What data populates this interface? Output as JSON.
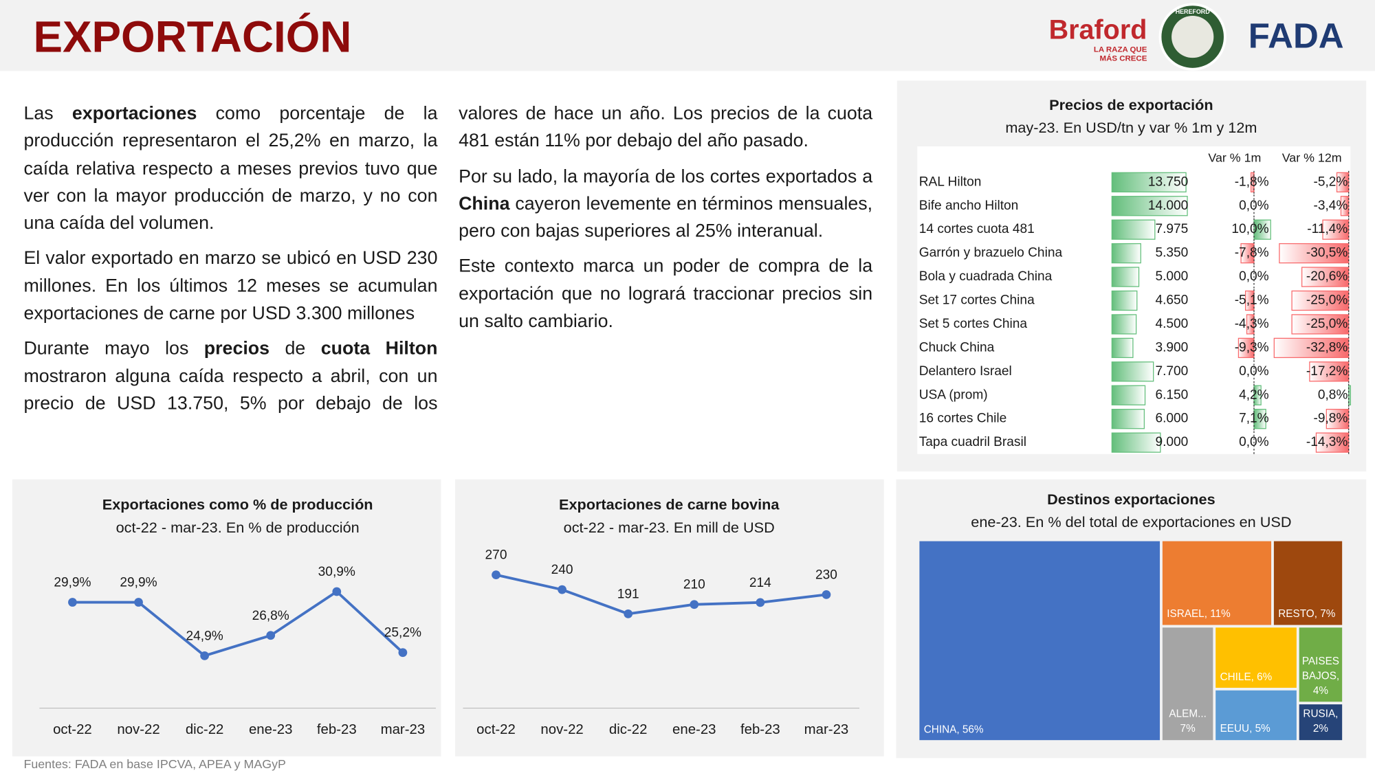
{
  "header": {
    "title": "EXPORTACIÓN",
    "logos": {
      "braford": "Braford",
      "braford_tagline_1": "LA RAZA QUE",
      "braford_tagline_2": "MÁS CRECE",
      "hereford": "HEREFORD",
      "fada": "FADA"
    }
  },
  "paragraphs": [
    [
      {
        "text": "Las "
      },
      {
        "text": "exportaciones",
        "bold": true
      },
      {
        "text": " como porcentaje de la producción representaron el 25,2% en marzo, la caída relativa respecto a meses previos tuvo que ver con la mayor producción de marzo, y no con una caída del volumen."
      }
    ],
    [
      {
        "text": "El valor exportado en marzo se ubicó en USD 230 millones. En los últimos 12 meses se acumulan exportaciones de carne por USD 3.300 millones"
      }
    ],
    [
      {
        "text": "Durante mayo los "
      },
      {
        "text": "precios",
        "bold": true
      },
      {
        "text": " de "
      },
      {
        "text": "cuota Hilton",
        "bold": true
      },
      {
        "text": " mostraron alguna caída respecto a abril, con un precio de USD 13.750, 5% por debajo de los valores de hace un año. Los precios de la cuota 481 están 11% por debajo del año pasado."
      }
    ],
    [
      {
        "text": "Por su lado, la mayoría de los cortes exportados a "
      },
      {
        "text": "China",
        "bold": true
      },
      {
        "text": " cayeron levemente en términos mensuales, pero con bajas superiores al 25% interanual."
      }
    ],
    [
      {
        "text": "Este contexto marca un poder de compra de la exportación que no logrará traccionar precios sin un salto cambiario."
      }
    ]
  ],
  "table": {
    "title": "Precios de exportación",
    "subtitle": "may-23. En USD/tn y var % 1m y 12m",
    "headers": [
      "Var % 1m",
      "Var % 12m"
    ],
    "names": [
      "RAL Hilton",
      "Bife ancho Hilton",
      "14 cortes cuota 481",
      "Garrón y brazuelo China",
      "Bola y cuadrada China",
      "Set 17 cortes China",
      "Set 5 cortes China",
      "Chuck China",
      "Delantero Israel",
      "USA (prom)",
      "16 cortes Chile",
      "Tapa cuadril Brasil"
    ],
    "price": {
      "values": [
        13750,
        14000,
        7975,
        5350,
        5000,
        4650,
        4500,
        3900,
        7700,
        6150,
        6000,
        9000
      ],
      "value_labels": [
        "13.750",
        "14.000",
        "7.975",
        "5.350",
        "5.000",
        "4.650",
        "4.500",
        "3.900",
        "7.700",
        "6.150",
        "6.000",
        "9.000"
      ]
    },
    "var_1m": {
      "values": [
        -1.8,
        0,
        10,
        -7.8,
        0,
        -5.1,
        -4.3,
        -9.3,
        0,
        4.2,
        7.1,
        0
      ],
      "value_labels": [
        "-1,8%",
        "0,0%",
        "10,0%",
        "-7,8%",
        "0,0%",
        "-5,1%",
        "-4,3%",
        "-9,3%",
        "0,0%",
        "4,2%",
        "7,1%",
        "0,0%"
      ]
    },
    "var_12m": {
      "values": [
        -5.2,
        -3.4,
        -11.4,
        -30.5,
        -20.6,
        -25.0,
        -25.0,
        -32.8,
        -17.2,
        0.8,
        -9.8,
        -14.3
      ],
      "value_labels": [
        "-5,2%",
        "-3,4%",
        "-11,4%",
        "-30,5%",
        "-20,6%",
        "-25,0%",
        "-25,0%",
        "-32,8%",
        "-17,2%",
        "0,8%",
        "-9,8%",
        "-14,3%"
      ]
    }
  },
  "chart_data": [
    {
      "type": "line",
      "title": "Exportaciones como % de producción",
      "subtitle": "oct-22 - mar-23. En % de producción",
      "categories": [
        "oct-22",
        "nov-22",
        "dic-22",
        "ene-23",
        "feb-23",
        "mar-23"
      ],
      "values": [
        29.9,
        29.9,
        24.9,
        26.8,
        30.9,
        25.2
      ],
      "value_labels": [
        "29,9%",
        "29,9%",
        "24,9%",
        "26,8%",
        "30,9%",
        "25,2%"
      ],
      "ylim": [
        20,
        32
      ],
      "color": "#4472c4"
    },
    {
      "type": "line",
      "title": "Exportaciones de carne bovina",
      "subtitle": "oct-22 - mar-23. En mill de USD",
      "categories": [
        "oct-22",
        "nov-22",
        "dic-22",
        "ene-23",
        "feb-23",
        "mar-23"
      ],
      "values": [
        270,
        240,
        191,
        210,
        214,
        230
      ],
      "ylim": [
        0,
        300
      ],
      "color": "#4472c4"
    },
    {
      "type": "treemap",
      "title": "Destinos exportaciones",
      "subtitle": "ene-23. En % del total de exportaciones en USD",
      "values": [
        56,
        11,
        7,
        7,
        6,
        5,
        4,
        2
      ],
      "value_labels": [
        "CHINA, 56%",
        "ISRAEL, 11%",
        "RESTO, 7%",
        "ALEM... 7%",
        "CHILE, 6%",
        "EEUU, 5%",
        "PAISES BAJOS, 4%",
        "RUSIA, 2%"
      ],
      "colors": [
        "#4472c4",
        "#ed7d31",
        "#9e480e",
        "#a5a5a5",
        "#ffc000",
        "#5b9bd5",
        "#70ad47",
        "#264478"
      ]
    }
  ],
  "footer": "Fuentes: FADA en base IPCVA, APEA y MAGyP"
}
